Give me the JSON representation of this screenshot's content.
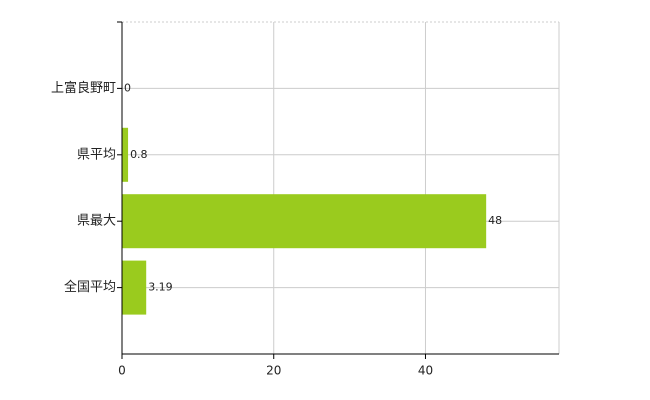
{
  "chart_data": {
    "type": "bar",
    "orientation": "horizontal",
    "categories": [
      "上富良野町",
      "県平均",
      "県最大",
      "全国平均"
    ],
    "values": [
      0,
      0.8,
      48,
      3.19
    ],
    "color": "#9acb1e",
    "xlim": [
      0,
      57.6
    ],
    "xticks": [
      0,
      20,
      40
    ],
    "grid": true
  }
}
